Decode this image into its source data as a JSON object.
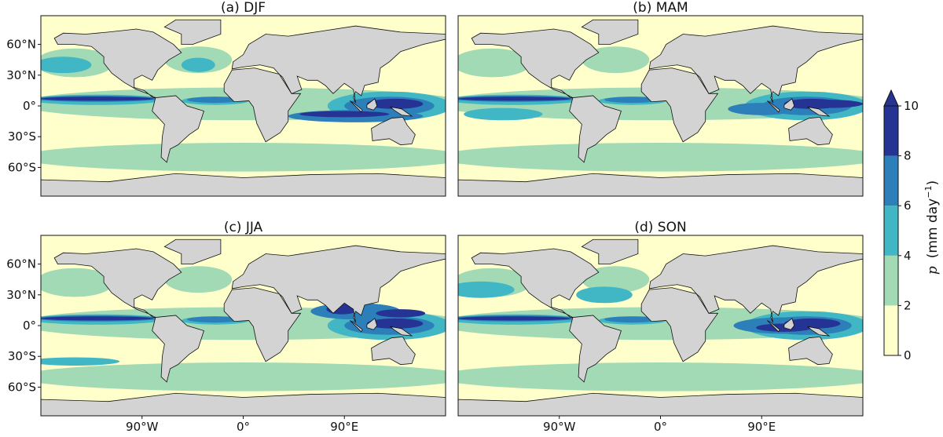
{
  "panels": [
    {
      "title": "(a)  DJF"
    },
    {
      "title": "(b)  MAM"
    },
    {
      "title": "(c)  JJA"
    },
    {
      "title": "(d)  SON"
    }
  ],
  "lat_ticks": [
    "60°N",
    "30°N",
    "0°",
    "30°S",
    "60°S"
  ],
  "lon_ticks": [
    "90°W",
    "0°",
    "90°E"
  ],
  "colorbar": {
    "symbol": "p",
    "unit": "(mm day",
    "exponent": "−1",
    "close": ")",
    "ticks": [
      0,
      2,
      4,
      6,
      8,
      10
    ],
    "colors": [
      "#ffffcc",
      "#a1dab4",
      "#41b6c4",
      "#2c7fb8",
      "#253494"
    ]
  }
}
